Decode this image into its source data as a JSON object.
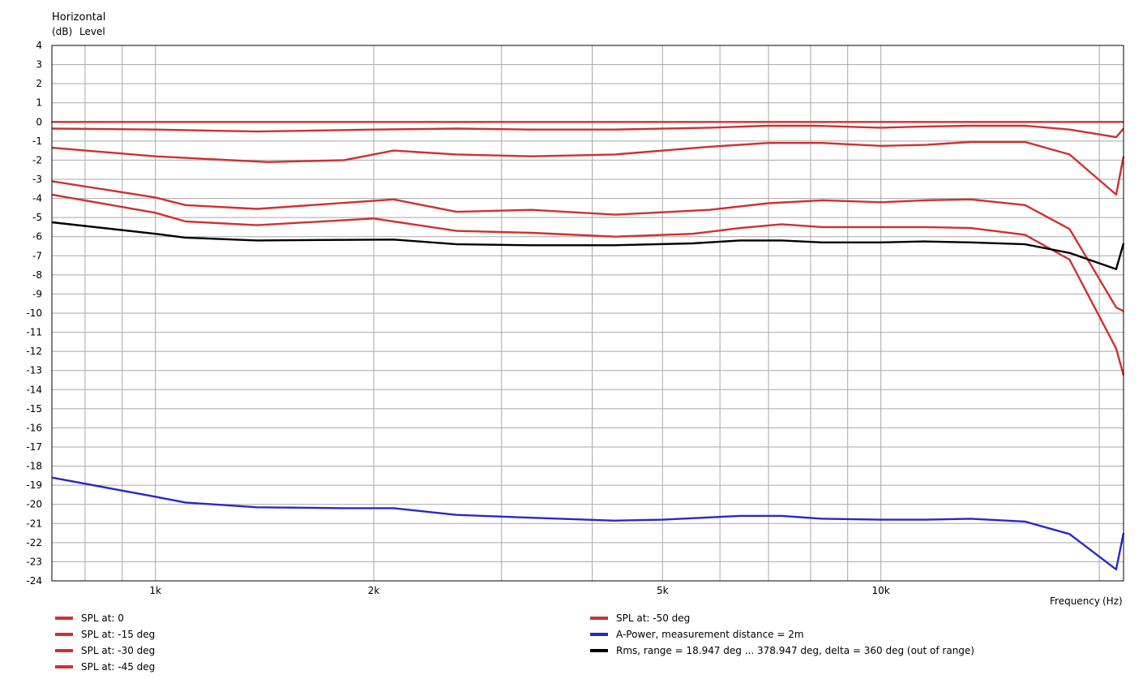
{
  "chart_data": {
    "type": "line",
    "title": "Horizontal",
    "ylabel_unit": "(dB)",
    "ylabel": "Level",
    "xlabel": "Frequency",
    "xlabel_unit": "(Hz)",
    "x_scale": "log",
    "xlim": [
      720,
      21600
    ],
    "ylim": [
      -24,
      4
    ],
    "grid": true,
    "y_ticks": [
      4,
      3,
      2,
      1,
      0,
      -1,
      -2,
      -3,
      -4,
      -5,
      -6,
      -7,
      -8,
      -9,
      -10,
      -11,
      -12,
      -13,
      -14,
      -15,
      -16,
      -17,
      -18,
      -19,
      -20,
      -21,
      -22,
      -23,
      -24
    ],
    "x_ticks": [
      {
        "value": 1000,
        "label": "1k"
      },
      {
        "value": 2000,
        "label": "2k"
      },
      {
        "value": 5000,
        "label": "5k"
      },
      {
        "value": 10000,
        "label": "10k"
      }
    ],
    "legend_position": "bottom",
    "legend_columns": 2,
    "colors": {
      "red": "#d03030",
      "blue": "#2828c8",
      "black": "#000000"
    },
    "series": [
      {
        "name": "SPL at: 0",
        "color": "#d03030",
        "x": [
          720,
          1000,
          2000,
          5000,
          10000,
          14000,
          16500,
          18800,
          21600
        ],
        "y": [
          0,
          0,
          0,
          0,
          0,
          0,
          0,
          0,
          0
        ]
      },
      {
        "name": "SPL at: -15 deg",
        "color": "#d03030",
        "x": [
          720,
          1000,
          1380,
          2000,
          2600,
          3300,
          4300,
          5800,
          7000,
          8100,
          10000,
          11200,
          13300,
          15800,
          18200,
          21100,
          21600
        ],
        "y": [
          -0.35,
          -0.4,
          -0.5,
          -0.4,
          -0.35,
          -0.4,
          -0.4,
          -0.3,
          -0.2,
          -0.2,
          -0.3,
          -0.25,
          -0.2,
          -0.2,
          -0.4,
          -0.8,
          -0.35
        ]
      },
      {
        "name": "SPL at: -30 deg",
        "color": "#d03030",
        "x": [
          720,
          1000,
          1430,
          1820,
          2130,
          2600,
          3300,
          4300,
          5800,
          7000,
          8300,
          10000,
          11500,
          13300,
          15800,
          18200,
          21100,
          21600
        ],
        "y": [
          -1.35,
          -1.8,
          -2.1,
          -2.0,
          -1.5,
          -1.7,
          -1.8,
          -1.7,
          -1.3,
          -1.1,
          -1.1,
          -1.25,
          -1.2,
          -1.05,
          -1.05,
          -1.7,
          -3.8,
          -1.8
        ]
      },
      {
        "name": "SPL at: -45 deg",
        "color": "#d03030",
        "x": [
          720,
          1000,
          1100,
          1380,
          2130,
          2600,
          3300,
          4300,
          5800,
          7000,
          8300,
          10000,
          11500,
          13300,
          15800,
          18200,
          21100,
          21600
        ],
        "y": [
          -3.1,
          -3.95,
          -4.35,
          -4.55,
          -4.05,
          -4.7,
          -4.6,
          -4.85,
          -4.6,
          -4.25,
          -4.1,
          -4.2,
          -4.1,
          -4.05,
          -4.35,
          -5.6,
          -9.7,
          -9.9
        ]
      },
      {
        "name": "SPL at: -50 deg",
        "color": "#d03030",
        "x": [
          720,
          1000,
          1100,
          1380,
          2000,
          2600,
          3300,
          4300,
          5500,
          6400,
          7300,
          8300,
          10000,
          11500,
          13300,
          15800,
          18200,
          21100,
          21600
        ],
        "y": [
          -3.8,
          -4.75,
          -5.2,
          -5.4,
          -5.05,
          -5.7,
          -5.8,
          -6.0,
          -5.85,
          -5.55,
          -5.35,
          -5.5,
          -5.5,
          -5.5,
          -5.55,
          -5.9,
          -7.2,
          -11.85,
          -13.25
        ]
      },
      {
        "name": "A-Power, measurement distance = 2m",
        "color": "#2828c8",
        "x": [
          720,
          1000,
          1100,
          1380,
          1820,
          2130,
          2600,
          3300,
          4300,
          5000,
          6400,
          7300,
          8300,
          10000,
          11500,
          13300,
          15800,
          18200,
          21100,
          21600
        ],
        "y": [
          -18.6,
          -19.6,
          -19.9,
          -20.15,
          -20.2,
          -20.2,
          -20.55,
          -20.7,
          -20.85,
          -20.8,
          -20.6,
          -20.6,
          -20.75,
          -20.8,
          -20.8,
          -20.75,
          -20.9,
          -21.55,
          -23.4,
          -21.5
        ]
      },
      {
        "name": "Rms, range = 18.947 deg ... 378.947 deg, delta = 360 deg (out of range)",
        "color": "#000000",
        "x": [
          720,
          1000,
          1100,
          1380,
          2130,
          2600,
          3300,
          4300,
          5500,
          6400,
          7300,
          8300,
          10000,
          11500,
          13300,
          15800,
          18200,
          21100,
          21600
        ],
        "y": [
          -5.25,
          -5.85,
          -6.05,
          -6.2,
          -6.15,
          -6.4,
          -6.45,
          -6.45,
          -6.35,
          -6.2,
          -6.2,
          -6.3,
          -6.3,
          -6.25,
          -6.3,
          -6.4,
          -6.85,
          -7.7,
          -6.35
        ]
      }
    ]
  }
}
